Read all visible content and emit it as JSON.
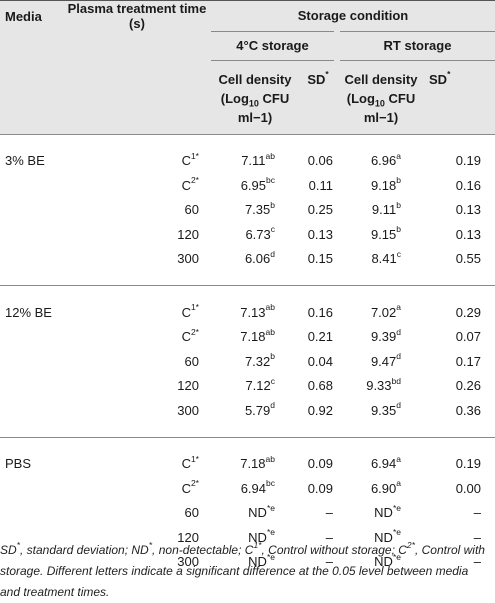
{
  "headers": {
    "media": "Media",
    "plasma_time": "Plasma treatment time (s)",
    "storage_condition": "Storage condition",
    "storage_4c": "4°C storage",
    "storage_rt": "RT storage",
    "cell_density_line1": "Cell density",
    "cell_density_line2_pre": "(Log",
    "cell_density_line2_sub": "10",
    "cell_density_line2_post": " CFU",
    "cell_density_line3": "ml−1)",
    "sd": "SD",
    "sd_mark": "*"
  },
  "groups": [
    {
      "media": "3% BE",
      "rows": [
        {
          "time": "C",
          "time_sup": "1*",
          "d4": "7.11",
          "d4_sup": "ab",
          "sd4": "0.06",
          "drt": "6.96",
          "drt_sup": "a",
          "sdrt": "0.19"
        },
        {
          "time": "C",
          "time_sup": "2*",
          "d4": "6.95",
          "d4_sup": "bc",
          "sd4": "0.11",
          "drt": "9.18",
          "drt_sup": "b",
          "sdrt": "0.16"
        },
        {
          "time": "60",
          "time_sup": "",
          "d4": "7.35",
          "d4_sup": "b",
          "sd4": "0.25",
          "drt": "9.11",
          "drt_sup": "b",
          "sdrt": "0.13"
        },
        {
          "time": "120",
          "time_sup": "",
          "d4": "6.73",
          "d4_sup": "c",
          "sd4": "0.13",
          "drt": "9.15",
          "drt_sup": "b",
          "sdrt": "0.13"
        },
        {
          "time": "300",
          "time_sup": "",
          "d4": "6.06",
          "d4_sup": "d",
          "sd4": "0.15",
          "drt": "8.41",
          "drt_sup": "c",
          "sdrt": "0.55"
        }
      ]
    },
    {
      "media": "12% BE",
      "rows": [
        {
          "time": "C",
          "time_sup": "1*",
          "d4": "7.13",
          "d4_sup": "ab",
          "sd4": "0.16",
          "drt": "7.02",
          "drt_sup": "a",
          "sdrt": "0.29"
        },
        {
          "time": "C",
          "time_sup": "2*",
          "d4": "7.18",
          "d4_sup": "ab",
          "sd4": "0.21",
          "drt": "9.39",
          "drt_sup": "d",
          "sdrt": "0.07"
        },
        {
          "time": "60",
          "time_sup": "",
          "d4": "7.32",
          "d4_sup": "b",
          "sd4": "0.04",
          "drt": "9.47",
          "drt_sup": "d",
          "sdrt": "0.17"
        },
        {
          "time": "120",
          "time_sup": "",
          "d4": "7.12",
          "d4_sup": "c",
          "sd4": "0.68",
          "drt": "9.33",
          "drt_sup": "bd",
          "sdrt": "0.26"
        },
        {
          "time": "300",
          "time_sup": "",
          "d4": "5.79",
          "d4_sup": "d",
          "sd4": "0.92",
          "drt": "9.35",
          "drt_sup": "d",
          "sdrt": "0.36"
        }
      ]
    },
    {
      "media": "PBS",
      "rows": [
        {
          "time": "C",
          "time_sup": "1*",
          "d4": "7.18",
          "d4_sup": "ab",
          "sd4": "0.09",
          "drt": "6.94",
          "drt_sup": "a",
          "sdrt": "0.19"
        },
        {
          "time": "C",
          "time_sup": "2*",
          "d4": "6.94",
          "d4_sup": "bc",
          "sd4": "0.09",
          "drt": "6.90",
          "drt_sup": "a",
          "sdrt": "0.00"
        },
        {
          "time": "60",
          "time_sup": "",
          "d4": "ND",
          "d4_sup": "*e",
          "sd4": "–",
          "drt": "ND",
          "drt_sup": "*e",
          "sdrt": "–"
        },
        {
          "time": "120",
          "time_sup": "",
          "d4": "ND",
          "d4_sup": "*e",
          "sd4": "–",
          "drt": "ND",
          "drt_sup": "*e",
          "sdrt": "–"
        },
        {
          "time": "300",
          "time_sup": "",
          "d4": "ND",
          "d4_sup": "*e",
          "sd4": "–",
          "drt": "ND",
          "drt_sup": "*e",
          "sdrt": "–"
        }
      ]
    }
  ],
  "footnote": {
    "sd_abbr": "SD",
    "sd_text": ", standard deviation; ",
    "nd_abbr": "ND",
    "nd_text": ", non-detectable; ",
    "c1_abbr": "C",
    "c1_sup": "1*",
    "c1_text": ", Control without storage; ",
    "c2_abbr": "C",
    "c2_sup": "2*",
    "c2_text": ", Control with storage. Different letters indicate a significant difference at the 0.05 level between media and treatment times."
  }
}
